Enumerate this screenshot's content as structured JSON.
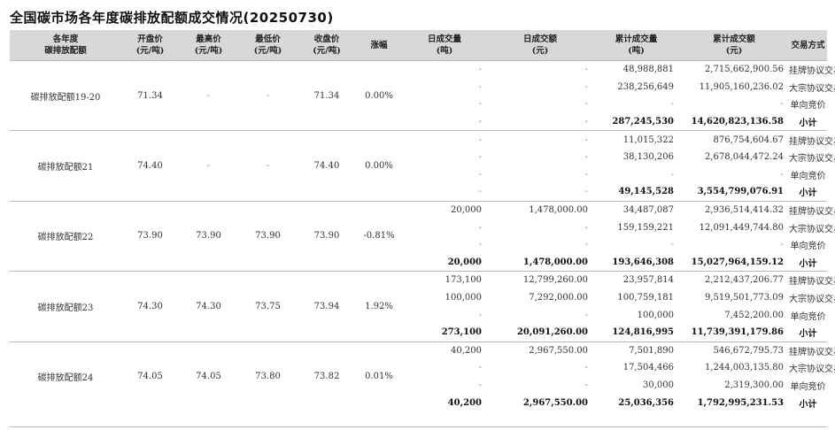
{
  "title": "全国碳市场各年度碳排放配额成交情况(20250730)",
  "headers": [
    [
      "各年度",
      "碳排放配额"
    ],
    [
      "开盘价",
      "(元/吨)"
    ],
    [
      "最高价",
      "(元/吨)"
    ],
    [
      "最低价",
      "(元/吨)"
    ],
    [
      "收盘价",
      "(元/吨)"
    ],
    [
      "涨幅"
    ],
    [
      "日成交量",
      "(吨)"
    ],
    [
      "日成交额",
      "(元)"
    ],
    [
      "累计成交量",
      "(吨)"
    ],
    [
      "累计成交额",
      "(元)"
    ],
    [
      "交易方式"
    ]
  ],
  "groups": [
    {
      "name": "碳排放配额19-20",
      "open": "71.34",
      "high": "-",
      "low": "-",
      "close": "71.34",
      "change": "0.00%",
      "rows": [
        {
          "dv": "-",
          "da": "-",
          "cv": "48,988,881",
          "ca": "2,715,662,900.56",
          "method": "挂牌协议交易"
        },
        {
          "dv": "-",
          "da": "-",
          "cv": "238,256,649",
          "ca": "11,905,160,236.02",
          "method": "大宗协议交易"
        },
        {
          "dv": "-",
          "da": "-",
          "cv": "-",
          "ca": "-",
          "method": "单向竞价"
        },
        {
          "dv": "-",
          "da": "-",
          "cv": "287,245,530",
          "ca": "14,620,823,136.58",
          "method": "小计"
        }
      ]
    },
    {
      "name": "碳排放配额21",
      "open": "74.40",
      "high": "-",
      "low": "-",
      "close": "74.40",
      "change": "0.00%",
      "rows": [
        {
          "dv": "-",
          "da": "-",
          "cv": "11,015,322",
          "ca": "876,754,604.67",
          "method": "挂牌协议交易"
        },
        {
          "dv": "-",
          "da": "-",
          "cv": "38,130,206",
          "ca": "2,678,044,472.24",
          "method": "大宗协议交易"
        },
        {
          "dv": "-",
          "da": "-",
          "cv": "-",
          "ca": "-",
          "method": "单向竞价"
        },
        {
          "dv": "-",
          "da": "-",
          "cv": "49,145,528",
          "ca": "3,554,799,076.91",
          "method": "小计"
        }
      ]
    },
    {
      "name": "碳排放配额22",
      "open": "73.90",
      "high": "73.90",
      "low": "73.90",
      "close": "73.90",
      "change": "-0.81%",
      "rows": [
        {
          "dv": "20,000",
          "da": "1,478,000.00",
          "cv": "34,487,087",
          "ca": "2,936,514,414.32",
          "method": "挂牌协议交易"
        },
        {
          "dv": "-",
          "da": "-",
          "cv": "159,159,221",
          "ca": "12,091,449,744.80",
          "method": "大宗协议交易"
        },
        {
          "dv": "-",
          "da": "-",
          "cv": "-",
          "ca": "-",
          "method": "单向竞价"
        },
        {
          "dv": "20,000",
          "da": "1,478,000.00",
          "cv": "193,646,308",
          "ca": "15,027,964,159.12",
          "method": "小计"
        }
      ]
    },
    {
      "name": "碳排放配额23",
      "open": "74.30",
      "high": "74.30",
      "low": "73.75",
      "close": "73.94",
      "change": "1.92%",
      "rows": [
        {
          "dv": "173,100",
          "da": "12,799,260.00",
          "cv": "23,957,814",
          "ca": "2,212,437,206.77",
          "method": "挂牌协议交易"
        },
        {
          "dv": "100,000",
          "da": "7,292,000.00",
          "cv": "100,759,181",
          "ca": "9,519,501,773.09",
          "method": "大宗协议交易"
        },
        {
          "dv": "-",
          "da": "-",
          "cv": "100,000",
          "ca": "7,452,200.00",
          "method": "单向竞价"
        },
        {
          "dv": "273,100",
          "da": "20,091,260.00",
          "cv": "124,816,995",
          "ca": "11,739,391,179.86",
          "method": "小计"
        }
      ]
    },
    {
      "name": "碳排放配额24",
      "open": "74.05",
      "high": "74.05",
      "low": "73.80",
      "close": "73.82",
      "change": "0.01%",
      "rows": [
        {
          "dv": "40,200",
          "da": "2,967,550.00",
          "cv": "7,501,890",
          "ca": "546,672,795.73",
          "method": "挂牌协议交易"
        },
        {
          "dv": "-",
          "da": "-",
          "cv": "17,504,466",
          "ca": "1,244,003,135.80",
          "method": "大宗协议交易"
        },
        {
          "dv": "-",
          "da": "-",
          "cv": "30,000",
          "ca": "2,319,300.00",
          "method": "单向竞价"
        },
        {
          "dv": "40,200",
          "da": "2,967,550.00",
          "cv": "25,036,356",
          "ca": "1,792,995,231.53",
          "method": "小计"
        }
      ]
    }
  ]
}
